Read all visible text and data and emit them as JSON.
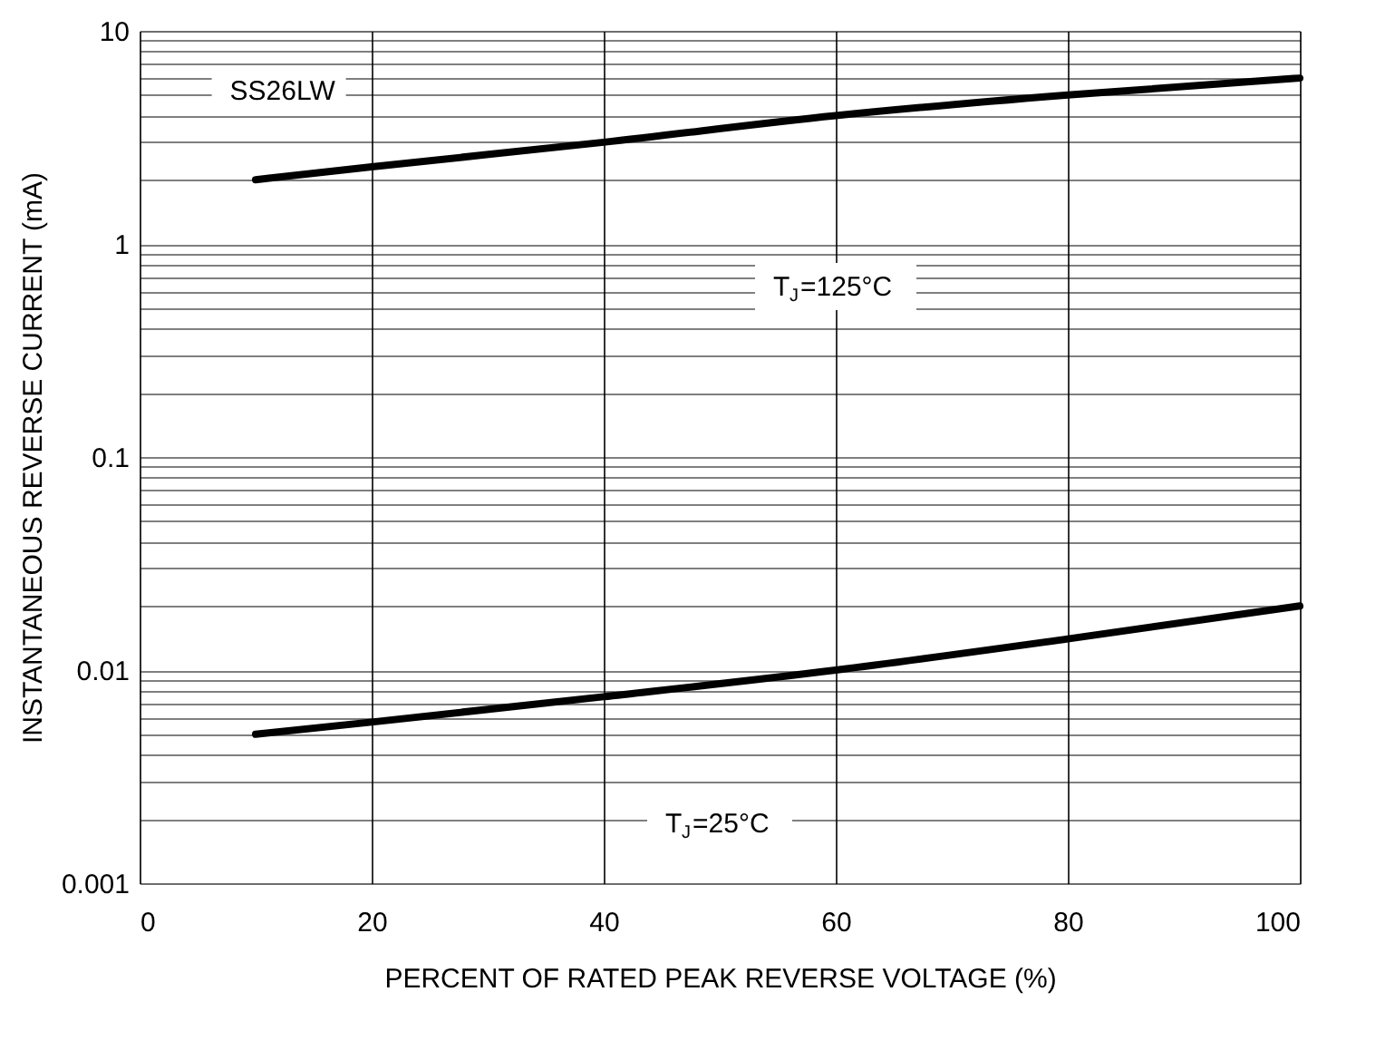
{
  "chart_data": {
    "type": "line",
    "xlabel": "PERCENT OF RATED PEAK REVERSE VOLTAGE (%)",
    "ylabel": "INSTANTANEOUS REVERSE CURRENT (mA)",
    "series": [
      {
        "color": "#000000",
        "x": [
          10,
          20,
          40,
          60,
          80,
          100
        ],
        "values": [
          2,
          2.3,
          3,
          4,
          5,
          6
        ]
      },
      {
        "color": "#000000",
        "x": [
          10,
          20,
          40,
          60,
          80,
          100
        ],
        "values": [
          0.005,
          0.0057,
          0.0075,
          0.01,
          0.014,
          0.02
        ]
      }
    ],
    "annotations": [
      "SS26LW",
      "T$_{J}$=125°C",
      "T$_{J}$=25°C"
    ],
    "xlim": [
      0,
      100
    ],
    "xticks": [
      0,
      20,
      40,
      60,
      80,
      100
    ],
    "ylim": [
      0.001,
      10
    ],
    "yticks": [
      0.001,
      {
        "value": 0.002,
        "label": null
      },
      {
        "value": 0.003,
        "label": null
      },
      {
        "value": 0.004,
        "label": null
      },
      {
        "value": 0.005,
        "label": null
      },
      {
        "value": 0.006,
        "label": null
      },
      {
        "value": 0.007,
        "label": null
      },
      {
        "value": 0.008,
        "label": null
      },
      {
        "value": 0.009,
        "label": null
      },
      0.01,
      {
        "value": 0.02,
        "label": null
      },
      {
        "value": 0.03,
        "label": null
      },
      {
        "value": 0.04,
        "label": null
      },
      {
        "value": 0.05,
        "label": null
      },
      {
        "value": 0.06,
        "label": null
      },
      {
        "value": 0.07,
        "label": null
      },
      {
        "value": 0.08,
        "label": null
      },
      {
        "value": 0.09,
        "label": null
      },
      0.1,
      {
        "value": 0.2,
        "label": null
      },
      {
        "value": 0.3,
        "label": null
      },
      {
        "value": 0.4,
        "label": null
      },
      {
        "value": 0.5,
        "label": null
      },
      {
        "value": 0.6,
        "label": null
      },
      {
        "value": 0.7,
        "label": null
      },
      {
        "value": 0.8,
        "label": null
      },
      {
        "value": 0.9,
        "label": null
      },
      1,
      {
        "value": 2,
        "label": null
      },
      {
        "value": 3,
        "label": null
      },
      {
        "value": 4,
        "label": null
      },
      {
        "value": 5,
        "label": null
      },
      {
        "value": 6,
        "label": null
      },
      {
        "value": 7,
        "label": null
      },
      {
        "value": 8,
        "label": null
      },
      {
        "value": 9,
        "label": null
      },
      10
    ],
    "log": true,
    "grid": true,
    "marker": "none",
    "line_style": "solid"
  }
}
